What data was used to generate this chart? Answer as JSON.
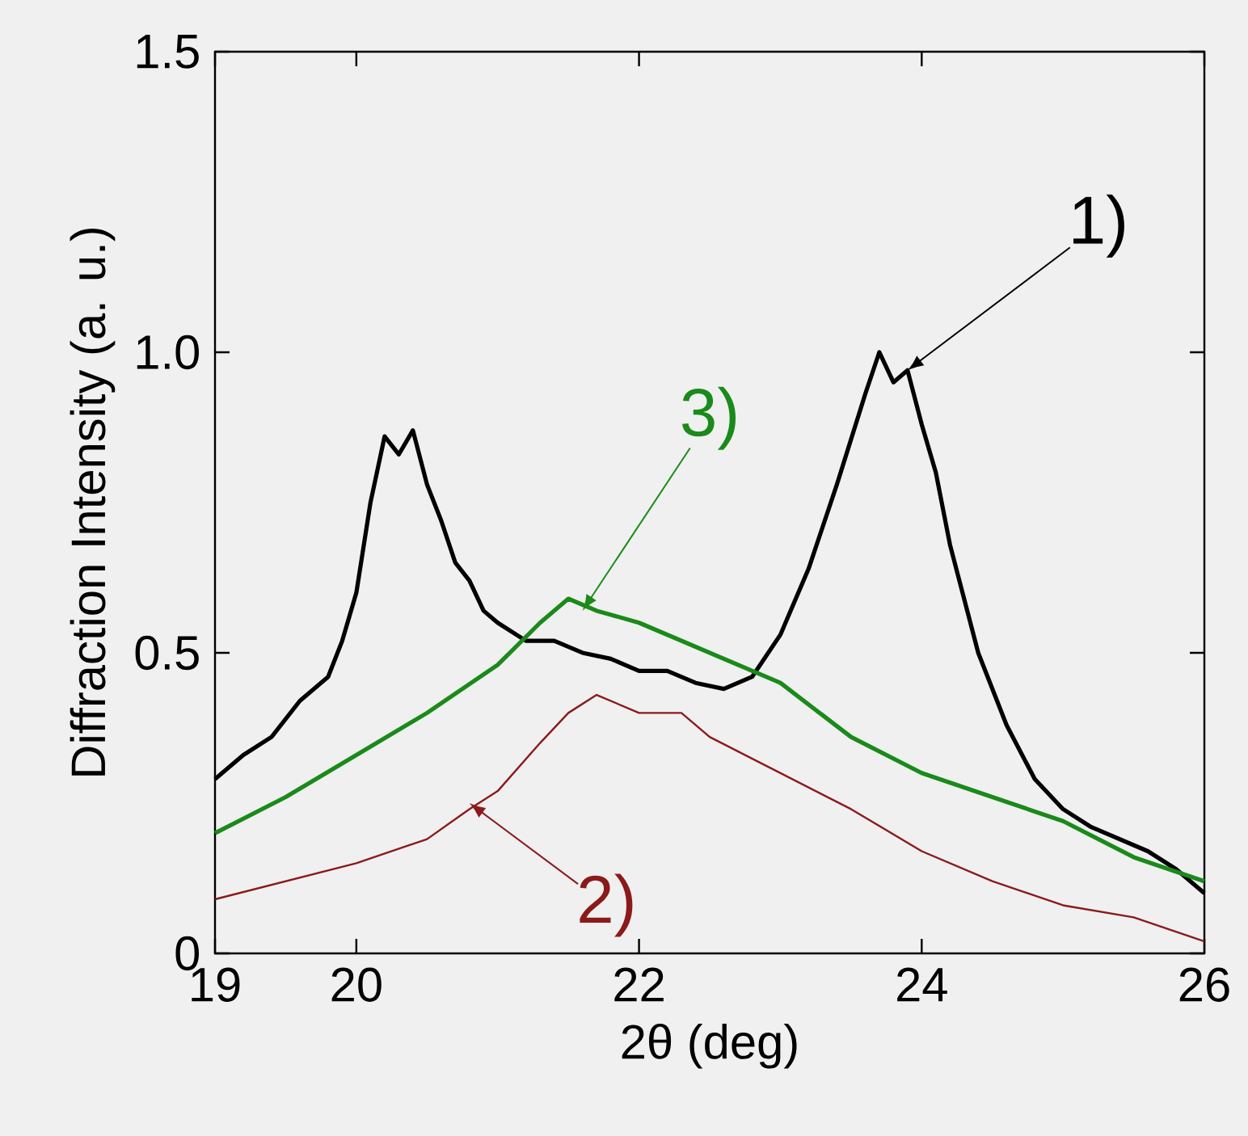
{
  "chart_data": {
    "type": "line",
    "xlabel": "2θ (deg)",
    "ylabel": "Diffraction Intensity (a. u.)",
    "xlim": [
      19,
      26
    ],
    "xticks": [
      19,
      20,
      22,
      24,
      26
    ],
    "ylim": [
      0,
      1.5
    ],
    "yticks": [
      0,
      0.5,
      {
        "value": 1,
        "label": "1.0"
      },
      1.5
    ],
    "grid": false,
    "series": [
      {
        "color": "#000000",
        "x": [
          19.0,
          19.2,
          19.4,
          19.6,
          19.8,
          19.9,
          20.0,
          20.1,
          20.2,
          20.3,
          20.4,
          20.5,
          20.6,
          20.7,
          20.8,
          20.9,
          21.0,
          21.2,
          21.4,
          21.6,
          21.8,
          22.0,
          22.2,
          22.4,
          22.6,
          22.8,
          23.0,
          23.2,
          23.4,
          23.6,
          23.7,
          23.8,
          23.9,
          24.0,
          24.1,
          24.2,
          24.4,
          24.6,
          24.8,
          25.0,
          25.2,
          25.4,
          25.6,
          25.8,
          26.0
        ],
        "values": [
          0.29,
          0.33,
          0.36,
          0.42,
          0.46,
          0.52,
          0.6,
          0.75,
          0.86,
          0.83,
          0.87,
          0.78,
          0.72,
          0.65,
          0.62,
          0.57,
          0.55,
          0.52,
          0.52,
          0.5,
          0.49,
          0.47,
          0.47,
          0.45,
          0.44,
          0.46,
          0.53,
          0.64,
          0.78,
          0.93,
          1.0,
          0.95,
          0.97,
          0.88,
          0.8,
          0.68,
          0.5,
          0.38,
          0.29,
          0.24,
          0.21,
          0.19,
          0.17,
          0.14,
          0.1
        ]
      },
      {
        "color": "#8b1a1a",
        "x": [
          19.0,
          19.5,
          20.0,
          20.5,
          20.8,
          21.0,
          21.3,
          21.5,
          21.7,
          22.0,
          22.3,
          22.5,
          23.0,
          23.5,
          24.0,
          24.5,
          25.0,
          25.5,
          26.0
        ],
        "values": [
          0.09,
          0.12,
          0.15,
          0.19,
          0.24,
          0.27,
          0.35,
          0.4,
          0.43,
          0.4,
          0.4,
          0.36,
          0.3,
          0.24,
          0.17,
          0.12,
          0.08,
          0.06,
          0.02
        ]
      },
      {
        "color": "#1a8a1a",
        "x": [
          19.0,
          19.5,
          20.0,
          20.5,
          21.0,
          21.3,
          21.5,
          21.7,
          22.0,
          22.5,
          23.0,
          23.5,
          24.0,
          24.5,
          25.0,
          25.5,
          26.0
        ],
        "values": [
          0.2,
          0.26,
          0.33,
          0.4,
          0.48,
          0.55,
          0.59,
          0.57,
          0.55,
          0.5,
          0.45,
          0.36,
          0.3,
          0.26,
          0.22,
          0.16,
          0.12
        ]
      }
    ],
    "annotations": [
      {
        "text": "1)",
        "x": 23.9,
        "y": 0.97
      },
      {
        "text": "2)",
        "x": 20.8,
        "y": 0.25
      },
      {
        "text": "3)",
        "x": 21.6,
        "y": 0.57
      }
    ]
  }
}
